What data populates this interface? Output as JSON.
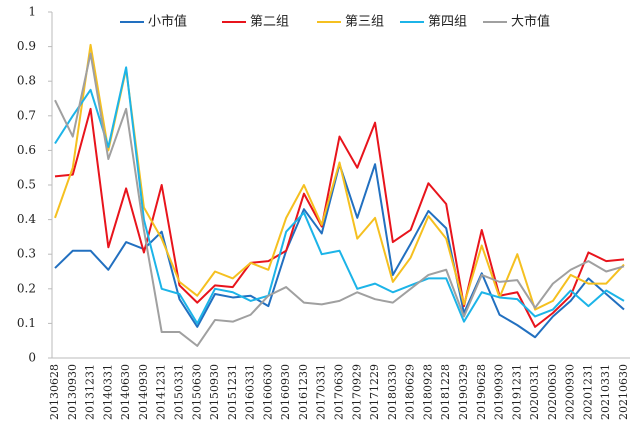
{
  "chart_data": {
    "type": "line",
    "categories": [
      "20130628",
      "20130930",
      "20131231",
      "20140331",
      "20140630",
      "20140930",
      "20141231",
      "20150331",
      "20150630",
      "20150930",
      "20151231",
      "20160331",
      "20160630",
      "20160930",
      "20161230",
      "20170331",
      "20170630",
      "20170929",
      "20171229",
      "20180330",
      "20180629",
      "20180928",
      "20181228",
      "20190329",
      "20190628",
      "20190930",
      "20191231",
      "20200331",
      "20200630",
      "20200930",
      "20201231",
      "20210331",
      "20210630"
    ],
    "series": [
      {
        "name": "小市值",
        "color": "#2270c0",
        "values": [
          0.26,
          0.31,
          0.31,
          0.255,
          0.335,
          0.315,
          0.365,
          0.17,
          0.09,
          0.185,
          0.175,
          0.18,
          0.15,
          0.31,
          0.43,
          0.36,
          0.56,
          0.405,
          0.56,
          0.24,
          0.33,
          0.425,
          0.375,
          0.13,
          0.245,
          0.125,
          0.095,
          0.06,
          0.12,
          0.165,
          0.23,
          0.185,
          0.14
        ]
      },
      {
        "name": "第二组",
        "color": "#e8141c",
        "values": [
          0.525,
          0.53,
          0.72,
          0.32,
          0.49,
          0.305,
          0.5,
          0.21,
          0.16,
          0.21,
          0.205,
          0.275,
          0.28,
          0.31,
          0.475,
          0.38,
          0.64,
          0.55,
          0.68,
          0.335,
          0.37,
          0.505,
          0.445,
          0.15,
          0.37,
          0.18,
          0.19,
          0.09,
          0.13,
          0.18,
          0.305,
          0.28,
          0.285
        ]
      },
      {
        "name": "第三组",
        "color": "#f5c020",
        "values": [
          0.405,
          0.55,
          0.905,
          0.6,
          0.835,
          0.435,
          0.345,
          0.22,
          0.18,
          0.25,
          0.23,
          0.275,
          0.255,
          0.405,
          0.5,
          0.385,
          0.565,
          0.345,
          0.405,
          0.22,
          0.29,
          0.41,
          0.345,
          0.155,
          0.325,
          0.175,
          0.3,
          0.14,
          0.165,
          0.24,
          0.215,
          0.215,
          0.27
        ]
      },
      {
        "name": "第四组",
        "color": "#1cb4e8",
        "values": [
          0.62,
          0.7,
          0.775,
          0.61,
          0.84,
          0.4,
          0.2,
          0.185,
          0.1,
          0.2,
          0.19,
          0.165,
          0.18,
          0.365,
          0.42,
          0.3,
          0.31,
          0.2,
          0.215,
          0.19,
          0.21,
          0.23,
          0.23,
          0.105,
          0.19,
          0.175,
          0.17,
          0.12,
          0.14,
          0.195,
          0.15,
          0.195,
          0.165
        ]
      },
      {
        "name": "大市值",
        "color": "#a0a0a0",
        "values": [
          0.745,
          0.64,
          0.88,
          0.575,
          0.72,
          0.37,
          0.075,
          0.075,
          0.035,
          0.11,
          0.105,
          0.125,
          0.18,
          0.205,
          0.16,
          0.155,
          0.165,
          0.19,
          0.17,
          0.16,
          0.2,
          0.24,
          0.255,
          0.12,
          0.24,
          0.22,
          0.225,
          0.145,
          0.215,
          0.255,
          0.28,
          0.25,
          0.265
        ]
      }
    ],
    "ylim": [
      0,
      1
    ],
    "yticks": [
      0,
      0.1,
      0.2,
      0.3,
      0.4,
      0.5,
      0.6,
      0.7,
      0.8,
      0.9,
      1
    ],
    "legend": "top"
  }
}
